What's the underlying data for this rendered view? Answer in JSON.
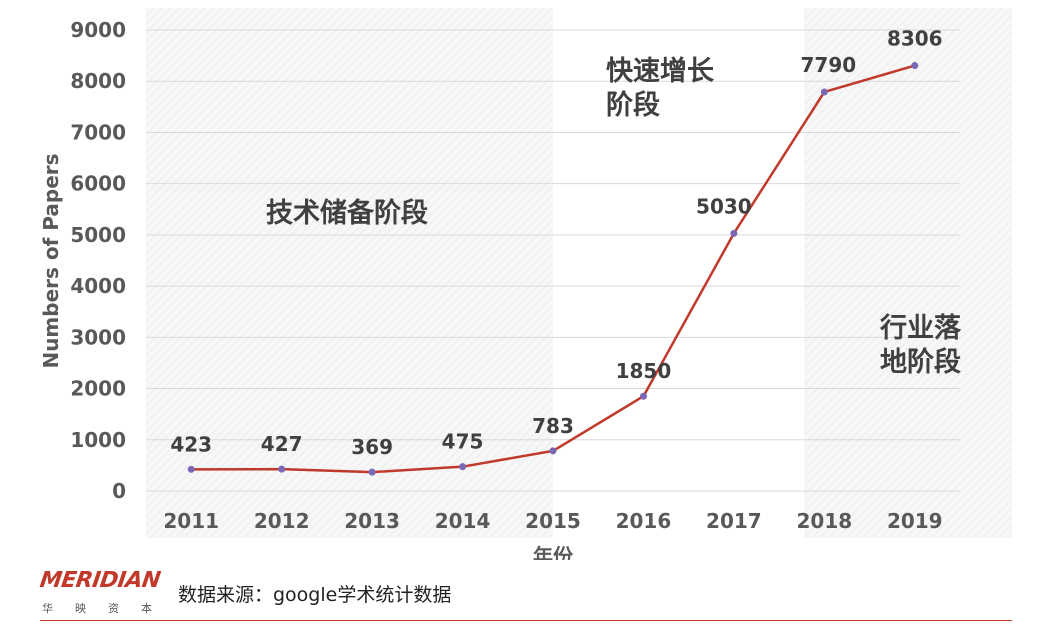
{
  "chart_data": {
    "type": "line",
    "x": [
      "2011",
      "2012",
      "2013",
      "2014",
      "2015",
      "2016",
      "2017",
      "2018",
      "2019"
    ],
    "values": [
      423,
      427,
      369,
      475,
      783,
      1850,
      5030,
      7790,
      8306
    ],
    "data_labels": [
      "423",
      "427",
      "369",
      "475",
      "783",
      "1850",
      "5030",
      "7790",
      "8306"
    ],
    "xlabel": "年份",
    "ylabel": "Numbers of Papers",
    "ylim": [
      0,
      9000
    ],
    "yticks": [
      "0",
      "1000",
      "2000",
      "3000",
      "4000",
      "5000",
      "6000",
      "7000",
      "8000",
      "9000"
    ],
    "grid": true,
    "line_color": "#c0392b",
    "marker_color": "#7b68b5",
    "stages": [
      {
        "lines": [
          "技术储备阶段"
        ],
        "span": [
          "2011",
          "2015"
        ],
        "shaded": true
      },
      {
        "lines": [
          "快速增长",
          "阶段"
        ],
        "span": [
          "2015",
          "2018"
        ],
        "shaded": false
      },
      {
        "lines": [
          "行业落",
          "地阶段"
        ],
        "span": [
          "2018",
          "2019"
        ],
        "shaded": true
      }
    ]
  },
  "footer": {
    "logo_text": "MERIDIAN",
    "logo_sub": [
      "华",
      "映",
      "资",
      "本"
    ],
    "source": "数据来源：google学术统计数据",
    "accent_color": "#c0392b"
  }
}
